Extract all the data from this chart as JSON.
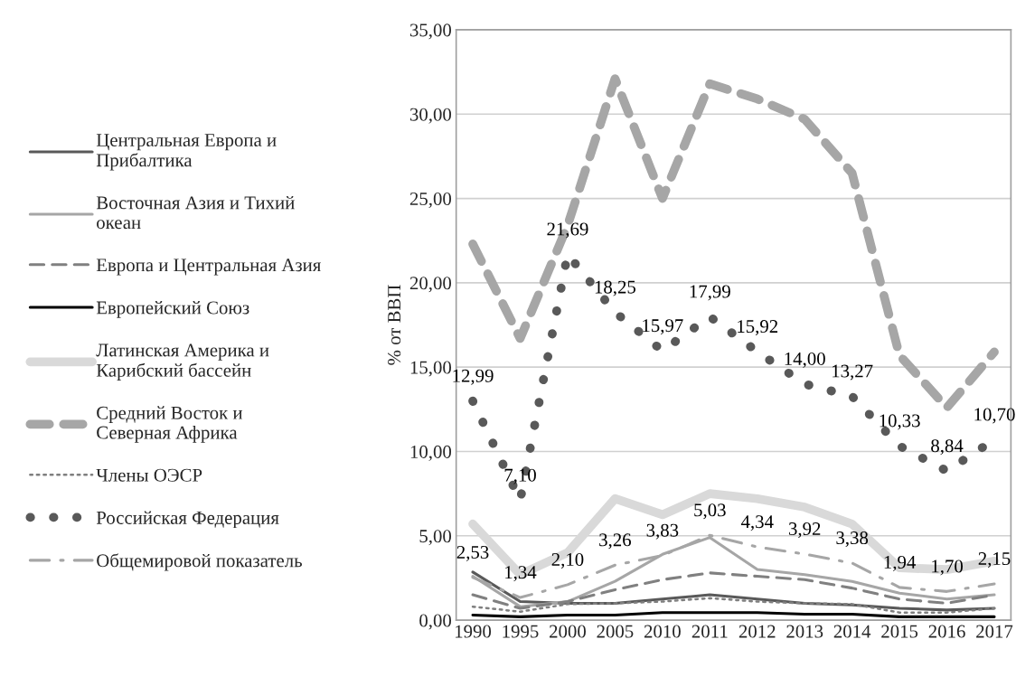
{
  "chart_data": {
    "type": "line",
    "ylabel": "% от ВВП",
    "categories": [
      "1990",
      "1995",
      "2000",
      "2005",
      "2010",
      "2011",
      "2012",
      "2013",
      "2014",
      "2015",
      "2016",
      "2017"
    ],
    "ylim": [
      0,
      35
    ],
    "yticks": [
      {
        "value": 0,
        "label": "0,00"
      },
      {
        "value": 5,
        "label": "5,00"
      },
      {
        "value": 10,
        "label": "10,00"
      },
      {
        "value": 15,
        "label": "15,00"
      },
      {
        "value": 20,
        "label": "20,00"
      },
      {
        "value": 25,
        "label": "25,00"
      },
      {
        "value": 30,
        "label": "30,00"
      },
      {
        "value": 35,
        "label": "35,00"
      }
    ],
    "grid": "y",
    "legend": "left",
    "marker": "none",
    "series": [
      {
        "name": "Центральная Европа и\nПрибалтика",
        "color": "#595959",
        "line_style": "solid",
        "values": [
          2.85,
          1.1,
          1.0,
          1.0,
          1.25,
          1.5,
          1.25,
          1.0,
          0.9,
          0.7,
          0.6,
          0.7
        ]
      },
      {
        "name": "Восточная Азия и Тихий\nокеан",
        "color": "#a6a6a6",
        "line_style": "solid",
        "values": [
          2.6,
          0.8,
          1.1,
          2.3,
          3.9,
          4.9,
          3.0,
          2.7,
          2.3,
          1.6,
          1.25,
          1.5
        ]
      },
      {
        "name": "Европа и Центральная Азия",
        "color": "#808080",
        "line_style": "dashed",
        "values": [
          1.5,
          0.7,
          1.1,
          1.8,
          2.4,
          2.8,
          2.6,
          2.4,
          1.9,
          1.25,
          1.0,
          1.5
        ]
      },
      {
        "name": "Европейский Союз",
        "color": "#000000",
        "line_style": "solid",
        "values": [
          0.3,
          0.2,
          0.3,
          0.3,
          0.45,
          0.45,
          0.45,
          0.35,
          0.35,
          0.2,
          0.2,
          0.2
        ]
      },
      {
        "name": "Латинская Америка и\nКарибский бассейн",
        "color": "#d9d9d9",
        "line_style": "solid",
        "values": [
          5.7,
          2.7,
          4.0,
          7.2,
          6.25,
          7.5,
          7.2,
          6.7,
          5.7,
          3.1,
          3.0,
          3.5
        ]
      },
      {
        "name": "Средний Восток и\nСеверная Африка",
        "color": "#a6a6a6",
        "line_style": "dashed",
        "values": [
          22.3,
          16.7,
          23.4,
          32.1,
          25.0,
          31.8,
          30.9,
          29.7,
          26.5,
          15.7,
          12.6,
          15.9
        ]
      },
      {
        "name": "Члены ОЭСР",
        "color": "#7f7f7f",
        "line_style": "dotted",
        "values": [
          0.8,
          0.5,
          0.95,
          1.0,
          1.1,
          1.3,
          1.1,
          1.0,
          0.95,
          0.45,
          0.45,
          0.7
        ]
      },
      {
        "name": "Российская Федерация",
        "color": "#595959",
        "line_style": "dotted",
        "values": [
          12.99,
          7.1,
          21.69,
          18.25,
          15.97,
          17.99,
          15.92,
          14.0,
          13.27,
          10.33,
          8.84,
          10.7
        ],
        "value_labels": [
          "12,99",
          "7,10",
          "21,69",
          "18,25",
          "15,97",
          "17,99",
          "15,92",
          "14,00",
          "13,27",
          "10,33",
          "8,84",
          "10,70"
        ]
      },
      {
        "name": "Общемировой показатель",
        "color": "#a6a6a6",
        "line_style": "dashdot",
        "values": [
          2.53,
          1.34,
          2.1,
          3.26,
          3.83,
          5.03,
          4.34,
          3.92,
          3.38,
          1.94,
          1.7,
          2.15
        ],
        "value_labels": [
          "2,53",
          "1,34",
          "2,10",
          "3,26",
          "3,83",
          "5,03",
          "4,34",
          "3,92",
          "3,38",
          "1,94",
          "1,70",
          "2,15"
        ]
      }
    ]
  }
}
